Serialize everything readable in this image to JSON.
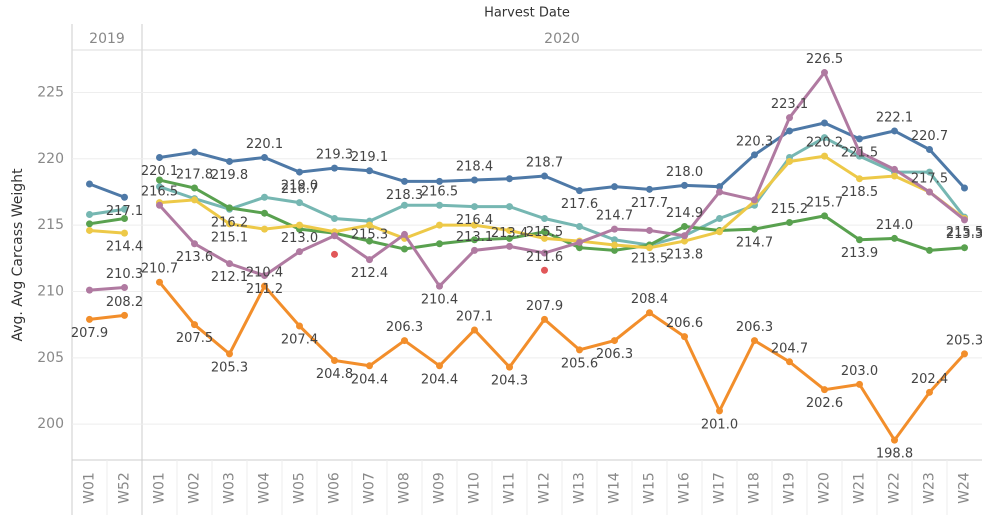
{
  "chart_data": {
    "type": "line",
    "title": "Harvest Date",
    "ylabel": "Avg. Avg Carcass Weight",
    "groups": [
      {
        "name": "2019",
        "categories": [
          "W01",
          "W52"
        ]
      },
      {
        "name": "2020",
        "categories": [
          "W01",
          "W02",
          "W03",
          "W04",
          "W05",
          "W06",
          "W07",
          "W08",
          "W09",
          "W10",
          "W11",
          "W12",
          "W13",
          "W14",
          "W15",
          "W16",
          "W17",
          "W18",
          "W19",
          "W20",
          "W21",
          "W22",
          "W23",
          "W24"
        ]
      }
    ],
    "ylim": [
      197.3,
      228.2
    ],
    "yticks": [
      200,
      205,
      210,
      215,
      220,
      225
    ],
    "grid": true,
    "series": [
      {
        "color": "#4e79a7",
        "values": [
          218.1,
          217.1,
          220.1,
          220.5,
          219.8,
          220.1,
          219.0,
          219.3,
          219.1,
          218.3,
          218.3,
          218.4,
          218.5,
          218.7,
          217.6,
          217.9,
          217.7,
          218.0,
          217.9,
          220.3,
          222.1,
          222.7,
          221.5,
          222.1,
          220.7,
          217.8
        ],
        "value_labels": [
          null,
          "217.1",
          "220.1",
          null,
          "219.8",
          "220.1",
          "219.0",
          "219.3",
          "219.1",
          "218.3",
          null,
          "218.4",
          null,
          "218.7",
          "217.6",
          null,
          "217.7",
          "218.0",
          null,
          "220.3",
          null,
          null,
          "221.5",
          "222.1",
          "220.7",
          null
        ]
      },
      {
        "color": "#76b7b2",
        "values": [
          215.8,
          216.2,
          217.9,
          217.0,
          216.2,
          217.1,
          216.7,
          215.5,
          215.3,
          216.5,
          216.5,
          216.4,
          216.4,
          215.5,
          214.9,
          213.9,
          213.5,
          214.2,
          215.5,
          216.5,
          220.1,
          221.6,
          220.2,
          219.0,
          219.0,
          215.6
        ],
        "value_labels": [
          null,
          null,
          null,
          null,
          "216.2",
          null,
          "216.7",
          null,
          "215.3",
          null,
          "216.5",
          "216.4",
          null,
          "215.5",
          null,
          null,
          "213.5",
          null,
          null,
          null,
          null,
          null,
          null,
          null,
          null,
          null
        ]
      },
      {
        "color": "#59a14f",
        "values": [
          215.1,
          215.5,
          218.4,
          217.8,
          216.3,
          215.9,
          214.7,
          214.4,
          213.8,
          213.2,
          213.6,
          213.9,
          214.0,
          214.5,
          213.3,
          213.1,
          213.5,
          214.9,
          214.6,
          214.7,
          215.2,
          215.7,
          213.9,
          214.0,
          213.1,
          213.3
        ],
        "value_labels": [
          null,
          null,
          null,
          "217.8",
          null,
          null,
          null,
          null,
          null,
          null,
          null,
          null,
          null,
          null,
          null,
          null,
          null,
          "214.9",
          null,
          "214.7",
          "215.2",
          "215.7",
          "213.9",
          "214.0",
          null,
          "213.3"
        ]
      },
      {
        "color": "#edc948",
        "values": [
          214.6,
          214.4,
          216.7,
          216.9,
          215.1,
          214.7,
          215.0,
          214.5,
          215.0,
          214.0,
          215.0,
          215.0,
          214.6,
          214.0,
          213.8,
          213.5,
          213.3,
          213.8,
          214.5,
          216.8,
          219.8,
          220.2,
          218.5,
          218.7,
          217.5,
          215.5
        ],
        "value_labels": [
          null,
          "214.4",
          null,
          null,
          "215.1",
          null,
          null,
          null,
          null,
          null,
          null,
          null,
          null,
          null,
          null,
          null,
          null,
          "213.8",
          null,
          null,
          null,
          "220.2",
          "218.5",
          null,
          "217.5",
          "215.5"
        ]
      },
      {
        "color": "#b07aa1",
        "values": [
          210.1,
          210.3,
          216.5,
          213.6,
          212.1,
          211.2,
          213.0,
          214.2,
          212.4,
          214.3,
          210.4,
          213.1,
          213.4,
          212.9,
          213.7,
          214.7,
          214.6,
          214.2,
          217.5,
          216.9,
          223.1,
          226.5,
          220.5,
          219.2,
          217.5,
          215.4
        ],
        "value_labels": [
          null,
          "210.3",
          "216.5",
          "213.6",
          "212.1",
          "211.2",
          "213.0",
          null,
          "212.4",
          null,
          "210.4",
          "213.1",
          "213.4",
          null,
          null,
          "214.7",
          null,
          null,
          null,
          null,
          "223.1",
          "226.5",
          null,
          null,
          null,
          null
        ]
      },
      {
        "color": "#f28e2b",
        "values": [
          207.9,
          208.2,
          210.7,
          207.5,
          205.3,
          210.4,
          207.4,
          204.8,
          204.4,
          206.3,
          204.4,
          207.1,
          204.3,
          207.9,
          205.6,
          206.3,
          208.4,
          206.6,
          201.0,
          206.3,
          204.7,
          202.6,
          203.0,
          198.8,
          202.4,
          205.3
        ],
        "value_labels": [
          "207.9",
          "208.2",
          "210.7",
          "207.5",
          "205.3",
          "210.4",
          "207.4",
          "204.8",
          "204.4",
          "206.3",
          "204.4",
          "207.1",
          "204.3",
          "207.9",
          "205.6",
          "206.3",
          "208.4",
          "206.6",
          "201.0",
          "206.3",
          "204.7",
          "202.6",
          "203.0",
          "198.8",
          "202.4",
          "205.3"
        ]
      },
      {
        "color": "#e15759",
        "values": [
          null,
          null,
          null,
          null,
          null,
          null,
          null,
          212.8,
          null,
          null,
          null,
          null,
          null,
          211.6,
          null,
          null,
          null,
          null,
          null,
          null,
          null,
          null,
          null,
          null,
          null,
          null
        ],
        "value_labels": [
          null,
          null,
          null,
          null,
          null,
          null,
          null,
          null,
          null,
          null,
          null,
          null,
          null,
          "211.6",
          null,
          null,
          null,
          null,
          null,
          null,
          null,
          null,
          null,
          null,
          null,
          null
        ]
      }
    ]
  }
}
